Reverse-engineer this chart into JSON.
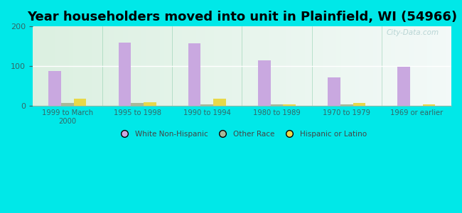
{
  "title": "Year householders moved into unit in Plainfield, WI (54966)",
  "categories": [
    "1999 to March\n2000",
    "1995 to 1998",
    "1990 to 1994",
    "1980 to 1989",
    "1970 to 1979",
    "1969 or earlier"
  ],
  "series": {
    "White Non-Hispanic": [
      88,
      160,
      157,
      115,
      72,
      98
    ],
    "Other Race": [
      8,
      8,
      4,
      4,
      5,
      0
    ],
    "Hispanic or Latino": [
      18,
      10,
      18,
      5,
      7,
      4
    ]
  },
  "colors": {
    "White Non-Hispanic": "#c9a8e0",
    "Other Race": "#a8b89a",
    "Hispanic or Latino": "#e8d84a"
  },
  "ylim": [
    0,
    200
  ],
  "yticks": [
    0,
    100,
    200
  ],
  "outer_bg": "#00e8e8",
  "chart_bg_left": "#d8ede0",
  "chart_bg_right": "#f0f8f8",
  "title_fontsize": 13,
  "watermark": "City-Data.com",
  "bar_width": 0.18,
  "legend_marker_color_white": "#d4a8e8",
  "legend_marker_color_other": "#b8c8a8",
  "legend_marker_color_hispanic": "#e8d840"
}
